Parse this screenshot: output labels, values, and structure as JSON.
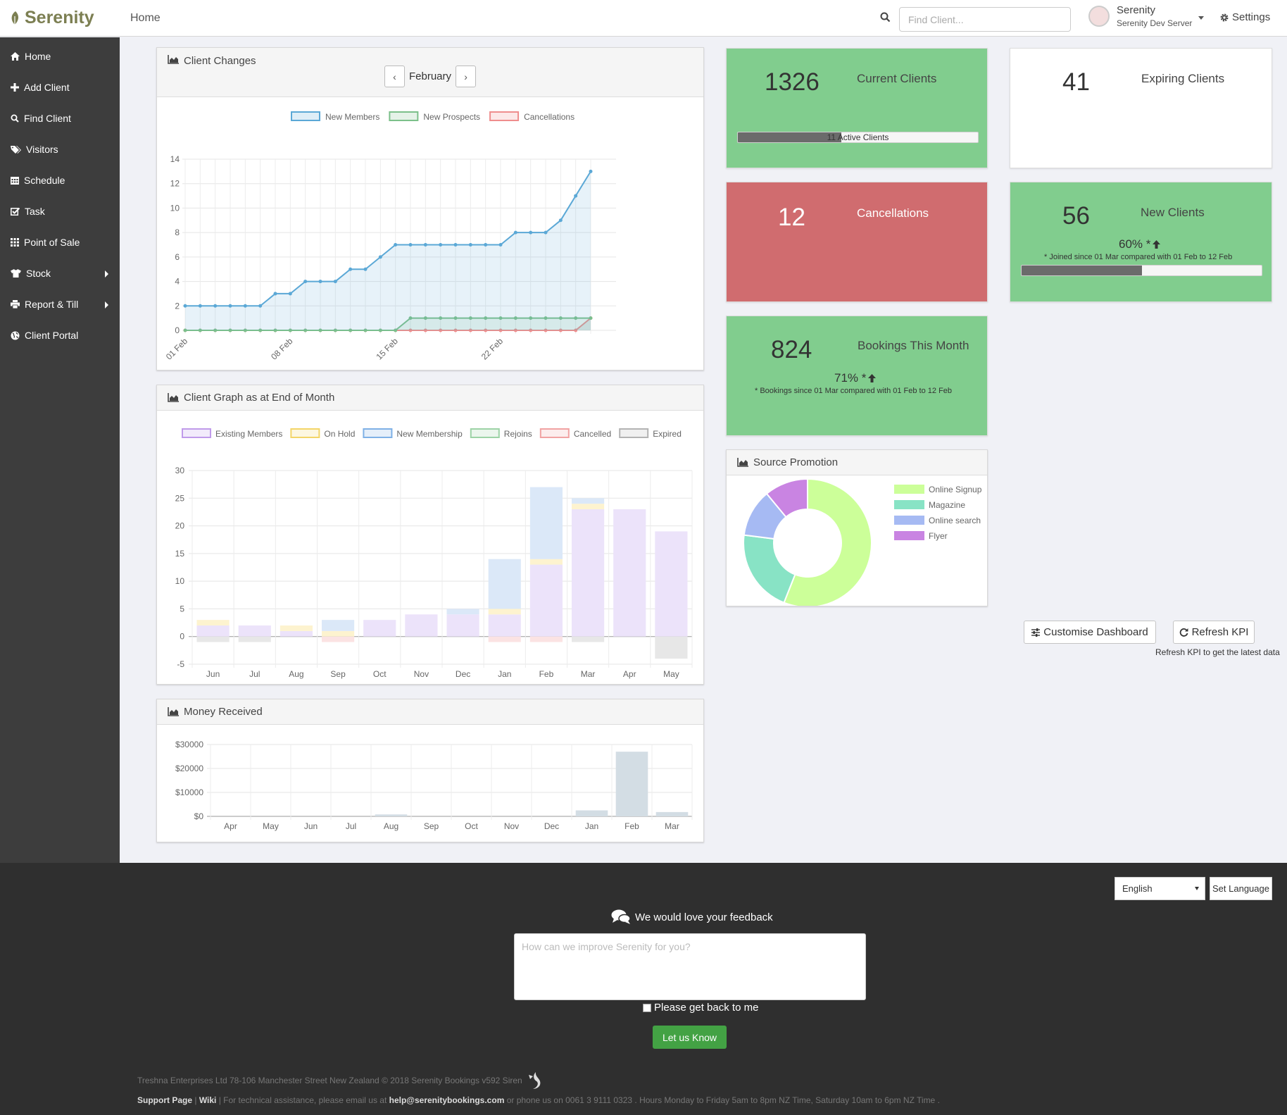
{
  "app": {
    "name": "Serenity"
  },
  "topbar": {
    "home_label": "Home",
    "search_placeholder": "Find Client...",
    "user_name": "Serenity",
    "user_server": "Serenity Dev Server",
    "settings_label": "Settings"
  },
  "sidebar": {
    "items": [
      {
        "label": "Home",
        "icon": "home-icon"
      },
      {
        "label": "Add Client",
        "icon": "plus-icon"
      },
      {
        "label": "Find Client",
        "icon": "search-icon"
      },
      {
        "label": "Visitors",
        "icon": "tags-icon"
      },
      {
        "label": "Schedule",
        "icon": "calendar-icon"
      },
      {
        "label": "Task",
        "icon": "check-square-icon"
      },
      {
        "label": "Point of Sale",
        "icon": "grid-icon"
      },
      {
        "label": "Stock",
        "icon": "shirt-icon",
        "has_submenu": true
      },
      {
        "label": "Report & Till",
        "icon": "printer-icon",
        "has_submenu": true
      },
      {
        "label": "Client Portal",
        "icon": "globe-icon"
      }
    ]
  },
  "panels": {
    "client_changes": {
      "title": "Client Changes",
      "month": "February",
      "prev": "‹",
      "next": "›"
    },
    "client_graph": {
      "title": "Client Graph as at End of Month"
    },
    "money_received": {
      "title": "Money Received"
    },
    "source_promotion": {
      "title": "Source Promotion"
    }
  },
  "kpis": {
    "current_clients": {
      "value": "1326",
      "label": "Current Clients",
      "bar_text": "11 Active Clients",
      "bar_fraction": 0.43
    },
    "expiring_clients": {
      "value": "41",
      "label": "Expiring Clients"
    },
    "cancellations": {
      "value": "12",
      "label": "Cancellations"
    },
    "new_clients": {
      "value": "56",
      "label": "New Clients",
      "pct": "60% *",
      "note": "* Joined since 01 Mar compared with 01 Feb to 12 Feb",
      "bar_fraction": 0.5
    },
    "bookings": {
      "value": "824",
      "label": "Bookings This Month",
      "pct": "71% *",
      "note": "* Bookings since 01 Mar compared with 01 Feb to 12 Feb"
    }
  },
  "actions": {
    "customise": "Customise Dashboard",
    "refresh": "Refresh KPI",
    "refresh_note": "Refresh KPI to get the latest data"
  },
  "footer": {
    "language": "English",
    "set_language": "Set Language",
    "feedback_title": "We would love your feedback",
    "feedback_placeholder": "How can we improve Serenity for you?",
    "get_back": "Please get back to me",
    "submit": "Let us Know",
    "copyright": "Treshna Enterprises Ltd 78-106 Manchester Street New Zealand © 2018 Serenity Bookings v592 Siren",
    "support_page": "Support Page",
    "wiki": "Wiki",
    "assist_pre": " | For technical assistance, please email us at ",
    "email": "help@serenitybookings.com",
    "assist_post": " or phone us on 0061 3 9111 0323 . Hours Monday to Friday 5am to 8pm NZ Time, Saturday 10am to 6pm NZ Time ."
  },
  "chart_data": [
    {
      "id": "client_changes",
      "type": "line",
      "x_ticks": [
        "01 Feb",
        "08 Feb",
        "15 Feb",
        "22 Feb"
      ],
      "ylim": [
        0,
        14
      ],
      "y_ticks": [
        0,
        2,
        4,
        6,
        8,
        10,
        12,
        14
      ],
      "grid": true,
      "legend_position": "top",
      "series": [
        {
          "name": "New Members",
          "color": "#5ba8d6",
          "values": [
            2,
            2,
            2,
            2,
            2,
            2,
            3,
            3,
            4,
            4,
            4,
            5,
            5,
            6,
            7,
            7,
            7,
            7,
            7,
            7,
            7,
            7,
            8,
            8,
            8,
            9,
            11,
            13
          ]
        },
        {
          "name": "New Prospects",
          "color": "#7cc08a",
          "values": [
            0,
            0,
            0,
            0,
            0,
            0,
            0,
            0,
            0,
            0,
            0,
            0,
            0,
            0,
            0,
            1,
            1,
            1,
            1,
            1,
            1,
            1,
            1,
            1,
            1,
            1,
            1,
            1
          ]
        },
        {
          "name": "Cancellations",
          "color": "#ef8d8d",
          "values": [
            0,
            0,
            0,
            0,
            0,
            0,
            0,
            0,
            0,
            0,
            0,
            0,
            0,
            0,
            0,
            0,
            0,
            0,
            0,
            0,
            0,
            0,
            0,
            0,
            0,
            0,
            0,
            1
          ]
        }
      ]
    },
    {
      "id": "client_graph",
      "type": "bar",
      "stacked": true,
      "categories": [
        "Jun",
        "Jul",
        "Aug",
        "Sep",
        "Oct",
        "Nov",
        "Dec",
        "Jan",
        "Feb",
        "Mar",
        "Apr",
        "May"
      ],
      "ylim": [
        -5,
        30
      ],
      "y_ticks": [
        -5,
        0,
        5,
        10,
        15,
        20,
        25,
        30
      ],
      "grid": true,
      "legend_position": "top",
      "series": [
        {
          "name": "Existing Members",
          "color": "#c09bea",
          "fill": "#ece3fa",
          "values": [
            2,
            2,
            1,
            0,
            3,
            4,
            4,
            4,
            13,
            23,
            23,
            19
          ]
        },
        {
          "name": "On Hold",
          "color": "#f3d569",
          "fill": "#fdf3cf",
          "values": [
            1,
            0,
            1,
            1,
            0,
            0,
            0,
            1,
            1,
            1,
            0,
            0
          ]
        },
        {
          "name": "New Membership",
          "color": "#7fb1e6",
          "fill": "#dbe8f8",
          "values": [
            0,
            0,
            0,
            2,
            0,
            0,
            1,
            9,
            13,
            1,
            0,
            0
          ]
        },
        {
          "name": "Rejoins",
          "color": "#9dd3a6",
          "fill": "#e0f2e3",
          "values": [
            0,
            0,
            0,
            0,
            0,
            0,
            0,
            0,
            0,
            0,
            0,
            0
          ]
        },
        {
          "name": "Cancelled",
          "color": "#f1a3a3",
          "fill": "#fbe3e3",
          "values": [
            0,
            0,
            0,
            -1,
            0,
            0,
            0,
            -1,
            -1,
            0,
            0,
            0
          ]
        },
        {
          "name": "Expired",
          "color": "#b3b3b3",
          "fill": "#e7e7e7",
          "values": [
            -1,
            -1,
            0,
            0,
            0,
            0,
            0,
            0,
            0,
            -1,
            0,
            -4
          ]
        }
      ]
    },
    {
      "id": "money_received",
      "type": "bar",
      "categories": [
        "Apr",
        "May",
        "Jun",
        "Jul",
        "Aug",
        "Sep",
        "Oct",
        "Nov",
        "Dec",
        "Jan",
        "Feb",
        "Mar"
      ],
      "values": [
        0,
        0,
        0,
        0,
        800,
        0,
        0,
        0,
        0,
        2500,
        27000,
        1800
      ],
      "ylim": [
        0,
        30000
      ],
      "y_ticks": [
        "$0",
        "$10000",
        "$20000",
        "$30000"
      ],
      "grid": true
    },
    {
      "id": "source_promotion",
      "type": "pie",
      "donut": true,
      "legend_position": "right",
      "slices": [
        {
          "label": "Online Signup",
          "value": 56,
          "color": "#ccff99"
        },
        {
          "label": "Magazine",
          "value": 21,
          "color": "#88e3c5"
        },
        {
          "label": "Online search",
          "value": 12,
          "color": "#a6baf3"
        },
        {
          "label": "Flyer",
          "value": 11,
          "color": "#c984e2"
        }
      ]
    }
  ]
}
